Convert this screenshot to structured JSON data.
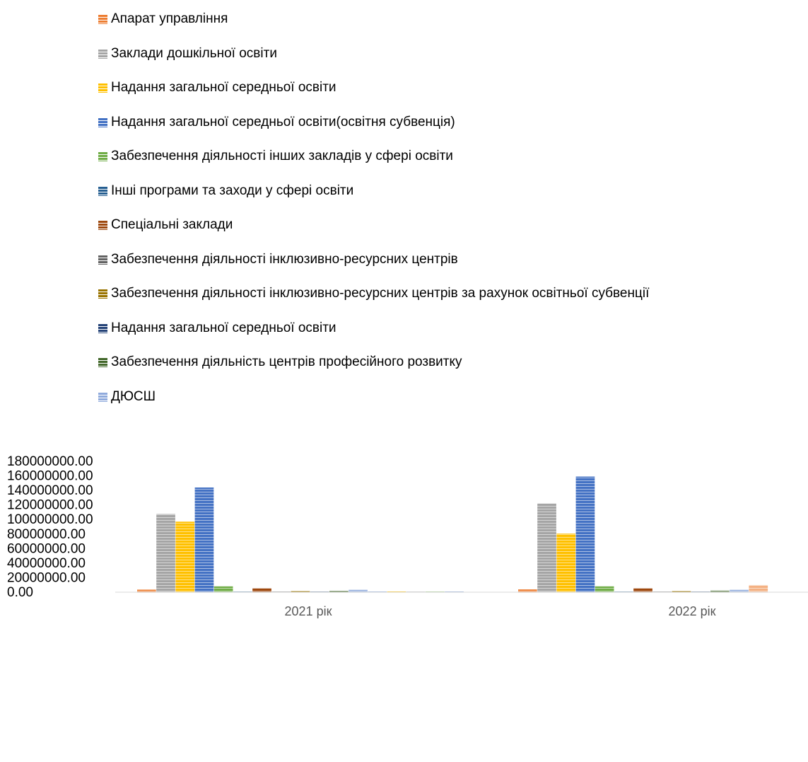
{
  "chart_data": {
    "type": "bar",
    "title": "",
    "xlabel": "",
    "ylabel": "",
    "categories": [
      "2021 рік",
      "2022 рік"
    ],
    "ylim": [
      0,
      180000000
    ],
    "yticks": [
      "0.00",
      "20000000.00",
      "40000000.00",
      "60000000.00",
      "80000000.00",
      "100000000.00",
      "120000000.00",
      "140000000.00",
      "160000000.00",
      "180000000.00"
    ],
    "legend_position": "top",
    "bar_style": "horizontal-striped",
    "grid": false,
    "series": [
      {
        "name": "Апарат управління",
        "color": "#ED7D31",
        "values": [
          3500000,
          3800000
        ]
      },
      {
        "name": "Заклади дошкільної освіти",
        "color": "#A5A5A5",
        "values": [
          107500000,
          122000000
        ]
      },
      {
        "name": " Надання загальної середньої освіти",
        "color": "#FFC000",
        "values": [
          97000000,
          80500000
        ]
      },
      {
        "name": "Надання загальної середньої освіти(освітня субвенція)",
        "color": "#4472C4",
        "values": [
          144000000,
          159000000
        ]
      },
      {
        "name": "Забезпечення діяльності інших закладів у сфері освіти",
        "color": "#70AD47",
        "values": [
          8000000,
          8000000
        ]
      },
      {
        "name": "Інші програми та заходи у сфері освіти",
        "color": "#255E91",
        "values": [
          200000,
          200000
        ]
      },
      {
        "name": "Спеціальні заклади",
        "color": "#9E480E",
        "values": [
          5500000,
          5500000
        ]
      },
      {
        "name": "Забезпечення діяльності інклюзивно-ресурсних центрів",
        "color": "#636363",
        "values": [
          300000,
          300000
        ]
      },
      {
        "name": "Забезпечення діяльності інклюзивно-ресурсних центрів за рахунок освітньої субвенції",
        "color": "#997300",
        "values": [
          1800000,
          1800000
        ]
      },
      {
        "name": "Надання загальної середньої освіти",
        "color": "#264478",
        "values": [
          300000,
          300000
        ]
      },
      {
        "name": "Забезпечення діяльність центрів професійного розвитку",
        "color": "#43682B",
        "values": [
          2000000,
          2200000
        ]
      },
      {
        "name": "ДЮСШ",
        "color": "#8FAADC",
        "values": [
          3200000,
          3200000
        ]
      }
    ],
    "extra_bars_between_categories": [
      {
        "color": "#4472C4",
        "value": 200000
      },
      {
        "color": "#FFC000",
        "value": 1000000
      },
      {
        "color": "#A5A5A5",
        "value": 200000
      },
      {
        "color": "#70AD47",
        "value": 500000
      },
      {
        "color": "#4472C4",
        "value": 300000
      }
    ],
    "extra_bar_2022": {
      "color": "#F4B183",
      "value": 9800000
    }
  }
}
